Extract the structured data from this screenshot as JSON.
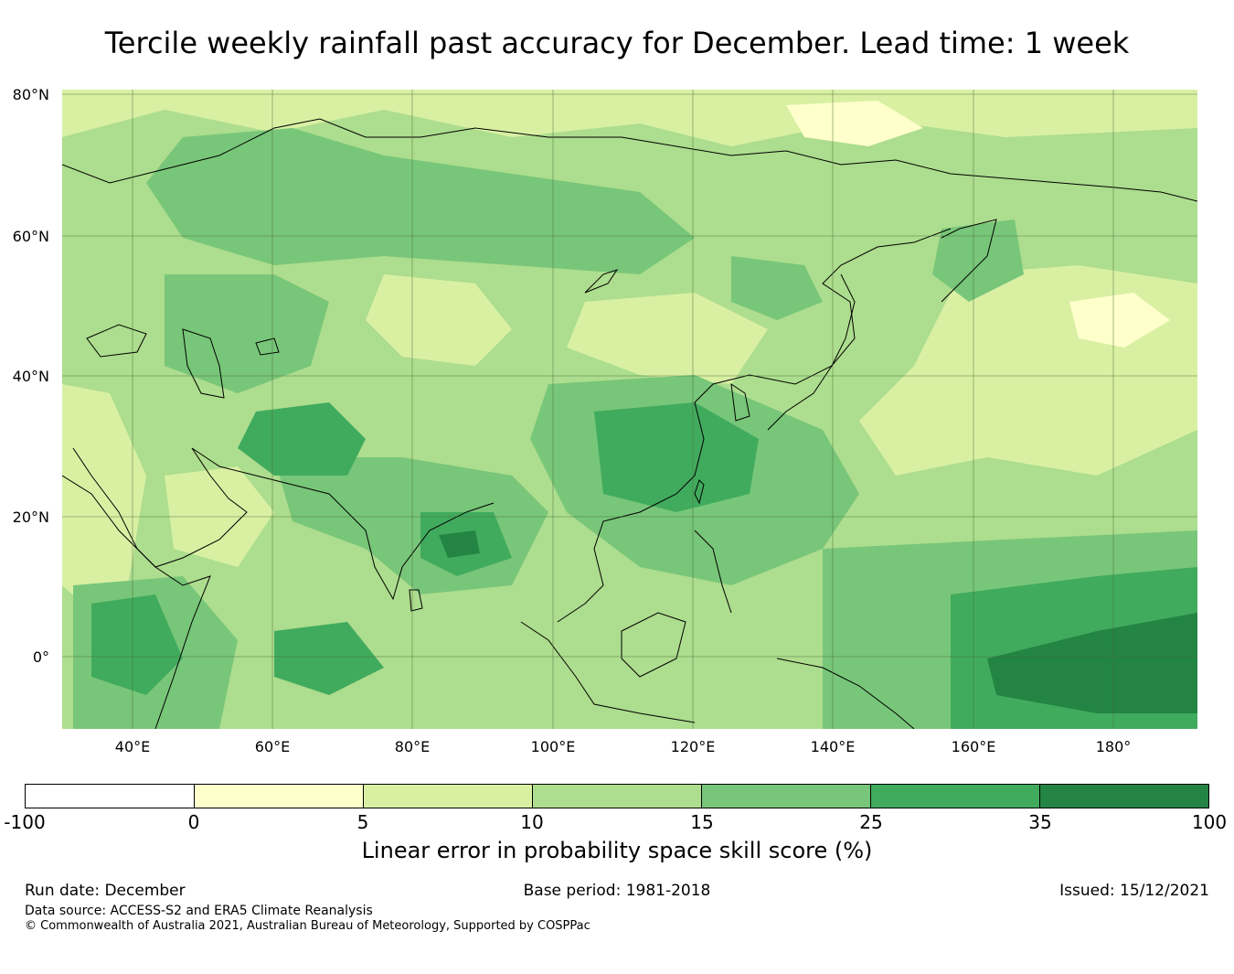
{
  "title": "Tercile weekly rainfall past accuracy for December. Lead time: 1 week",
  "map": {
    "lat_labels": [
      "80°N",
      "60°N",
      "40°N",
      "20°N",
      "0°"
    ],
    "lon_labels": [
      "40°E",
      "60°E",
      "80°E",
      "100°E",
      "120°E",
      "140°E",
      "160°E",
      "180°"
    ],
    "extent": {
      "lon_min": 30,
      "lon_max": 192,
      "lat_min": -10,
      "lat_max": 81
    }
  },
  "colorbar": {
    "ticks": [
      "-100",
      "0",
      "5",
      "10",
      "15",
      "25",
      "35",
      "100"
    ],
    "colors": [
      "#ffffff",
      "#ffffcc",
      "#d9f0a3",
      "#addd8e",
      "#78c679",
      "#41ab5d",
      "#238443"
    ],
    "label": "Linear error in probability space skill score (%)"
  },
  "footer": {
    "run_date": "Run date: December",
    "base_period": "Base period: 1981-2018",
    "issued": "Issued: 15/12/2021",
    "data_source": "Data source: ACCESS-S2 and ERA5 Climate Reanalysis",
    "copyright": "© Commonwealth of Australia 2021, Australian Bureau of Meteorology, Supported by COSPPac"
  }
}
